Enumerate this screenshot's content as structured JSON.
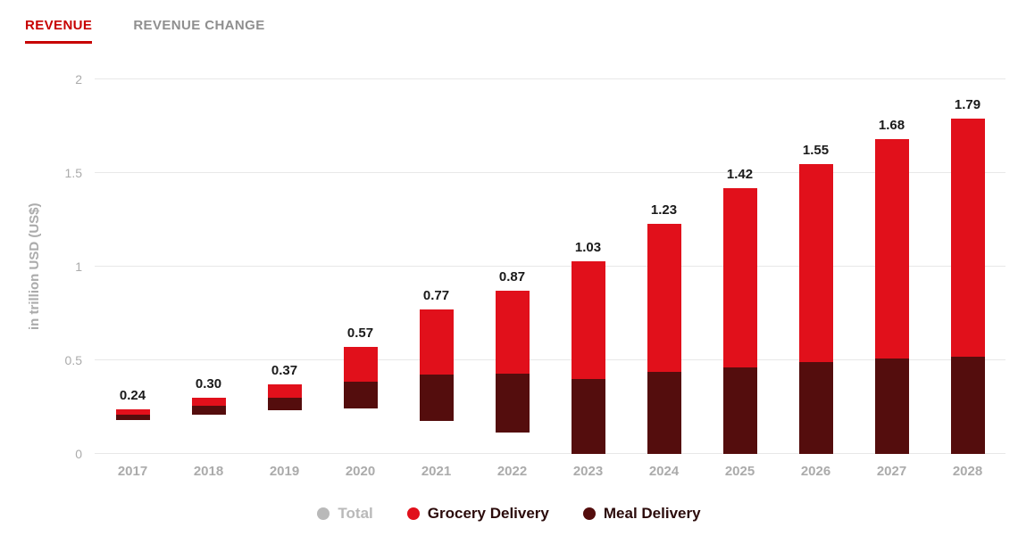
{
  "tabs": [
    {
      "label": "REVENUE",
      "active": true
    },
    {
      "label": "REVENUE CHANGE",
      "active": false
    }
  ],
  "colors": {
    "accent": "#c70000",
    "tab_inactive": "#8f8f8f",
    "axis": "#ababab",
    "grid": "#e8e8e8",
    "value_label": "#1a1a1a"
  },
  "chart_data": {
    "type": "bar",
    "stacked": true,
    "title": "",
    "xlabel": "",
    "ylabel": "in trillion USD (US$)",
    "ylim": [
      0,
      2
    ],
    "yticks": [
      0,
      0.5,
      1,
      1.5,
      2
    ],
    "grid": true,
    "legend_position": "bottom",
    "categories": [
      "2017",
      "2018",
      "2019",
      "2020",
      "2021",
      "2022",
      "2023",
      "2024",
      "2025",
      "2026",
      "2027",
      "2028"
    ],
    "totals": [
      0.24,
      0.3,
      0.37,
      0.57,
      0.77,
      0.87,
      1.03,
      1.23,
      1.42,
      1.55,
      1.68,
      1.79
    ],
    "series": [
      {
        "name": "Meal Delivery",
        "color": "#540d0d",
        "values": [
          0.11,
          0.15,
          0.18,
          0.25,
          0.32,
          0.36,
          0.4,
          0.44,
          0.46,
          0.49,
          0.51,
          0.52
        ]
      },
      {
        "name": "Grocery Delivery",
        "color": "#e1101b",
        "values": [
          0.13,
          0.15,
          0.19,
          0.32,
          0.45,
          0.51,
          0.63,
          0.79,
          0.96,
          1.06,
          1.17,
          1.27
        ]
      }
    ],
    "legend": [
      {
        "label": "Total",
        "color": "#b9b9b9",
        "text_color": "#b9b9b9"
      },
      {
        "label": "Grocery Delivery",
        "color": "#e1101b",
        "text_color": "#2b0b0b"
      },
      {
        "label": "Meal Delivery",
        "color": "#540d0d",
        "text_color": "#2b0b0b"
      }
    ]
  }
}
